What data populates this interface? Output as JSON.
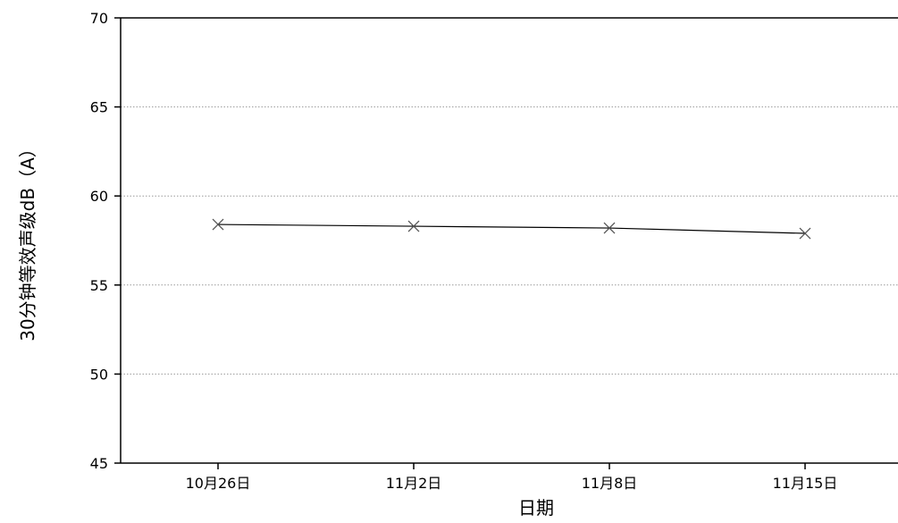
{
  "chart_data": {
    "type": "line",
    "title": "",
    "xlabel": "日期",
    "ylabel": "30分钟等效声级dB（A）",
    "categories": [
      "10月26日",
      "11月2日",
      "11月8日",
      "11月15日"
    ],
    "series": [
      {
        "values": [
          58.4,
          58.3,
          58.2,
          57.9
        ],
        "marker": "x",
        "color": "#000000"
      }
    ],
    "ylim": [
      45,
      70
    ],
    "yticks": [
      45,
      50,
      55,
      60,
      65,
      70
    ],
    "grid": {
      "y": true,
      "x": false,
      "style": "dotted"
    },
    "legend": "none"
  }
}
